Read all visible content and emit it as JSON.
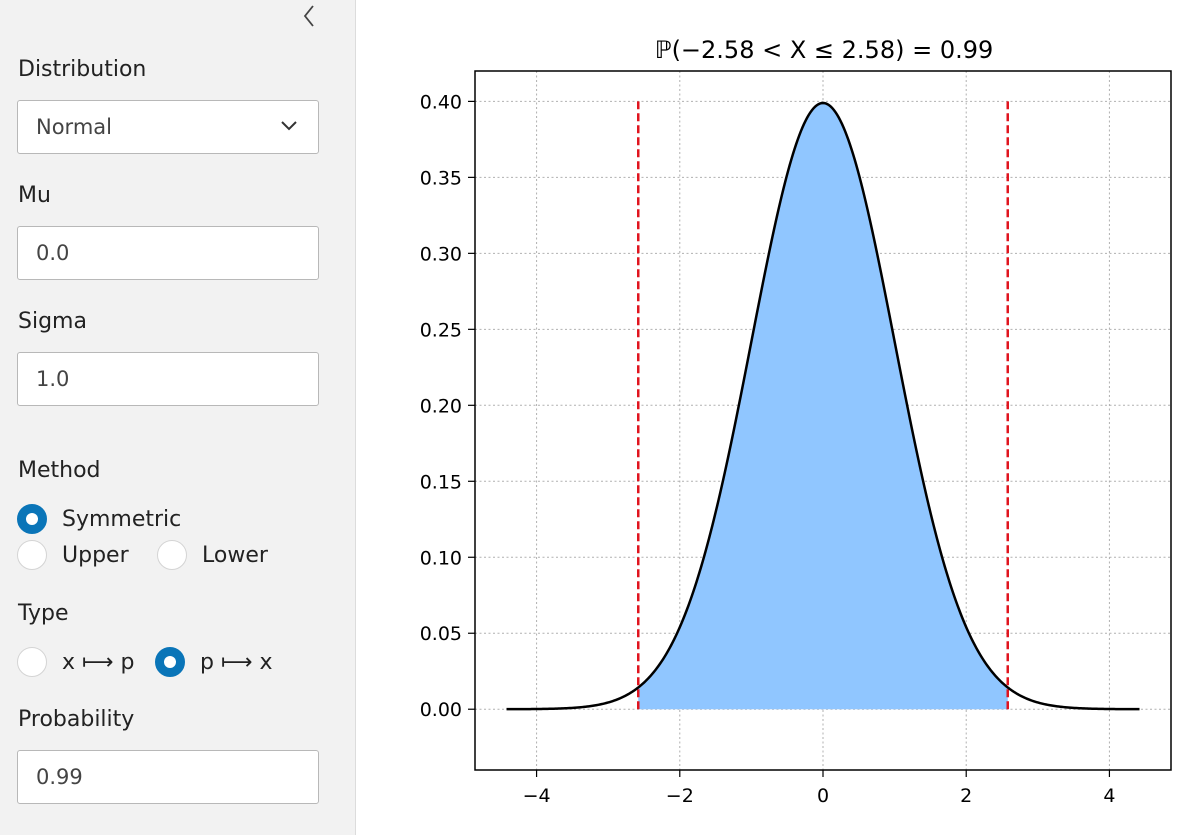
{
  "sidebar": {
    "distribution": {
      "label": "Distribution",
      "value": "Normal"
    },
    "mu": {
      "label": "Mu",
      "value": "0.0"
    },
    "sigma": {
      "label": "Sigma",
      "value": "1.0"
    },
    "method": {
      "label": "Method",
      "options": [
        "Symmetric",
        "Upper",
        "Lower"
      ],
      "selected": "Symmetric"
    },
    "type": {
      "label": "Type",
      "options": [
        "x ⟼ p",
        "p ⟼ x"
      ],
      "selected": "p ⟼ x"
    },
    "probability": {
      "label": "Probability",
      "value": "0.99"
    }
  },
  "colors": {
    "accent": "#0a75b8",
    "sidebar_bg": "#f2f2f2",
    "fill": "#90c6ff",
    "curve": "#000000",
    "bounds": "#e0141e"
  },
  "chart_data": {
    "type": "area",
    "title": "ℙ(−2.58 < X ≤ 2.58) = 0.99",
    "xlabel": "",
    "ylabel": "",
    "distribution": "normal",
    "mu": 0.0,
    "sigma": 1.0,
    "x_range": [
      -4.42,
      4.42
    ],
    "shaded_interval": [
      -2.58,
      2.58
    ],
    "bounds": [
      -2.58,
      2.58
    ],
    "xlim": [
      -4.86,
      4.86
    ],
    "ylim": [
      -0.04,
      0.42
    ],
    "xticks": [
      -4,
      -2,
      0,
      2,
      4
    ],
    "xtick_labels": [
      "−4",
      "−2",
      "0",
      "2",
      "4"
    ],
    "yticks": [
      0.0,
      0.05,
      0.1,
      0.15,
      0.2,
      0.25,
      0.3,
      0.35,
      0.4
    ],
    "ytick_labels": [
      "0.00",
      "0.05",
      "0.10",
      "0.15",
      "0.20",
      "0.25",
      "0.30",
      "0.35",
      "0.40"
    ],
    "grid": true
  }
}
